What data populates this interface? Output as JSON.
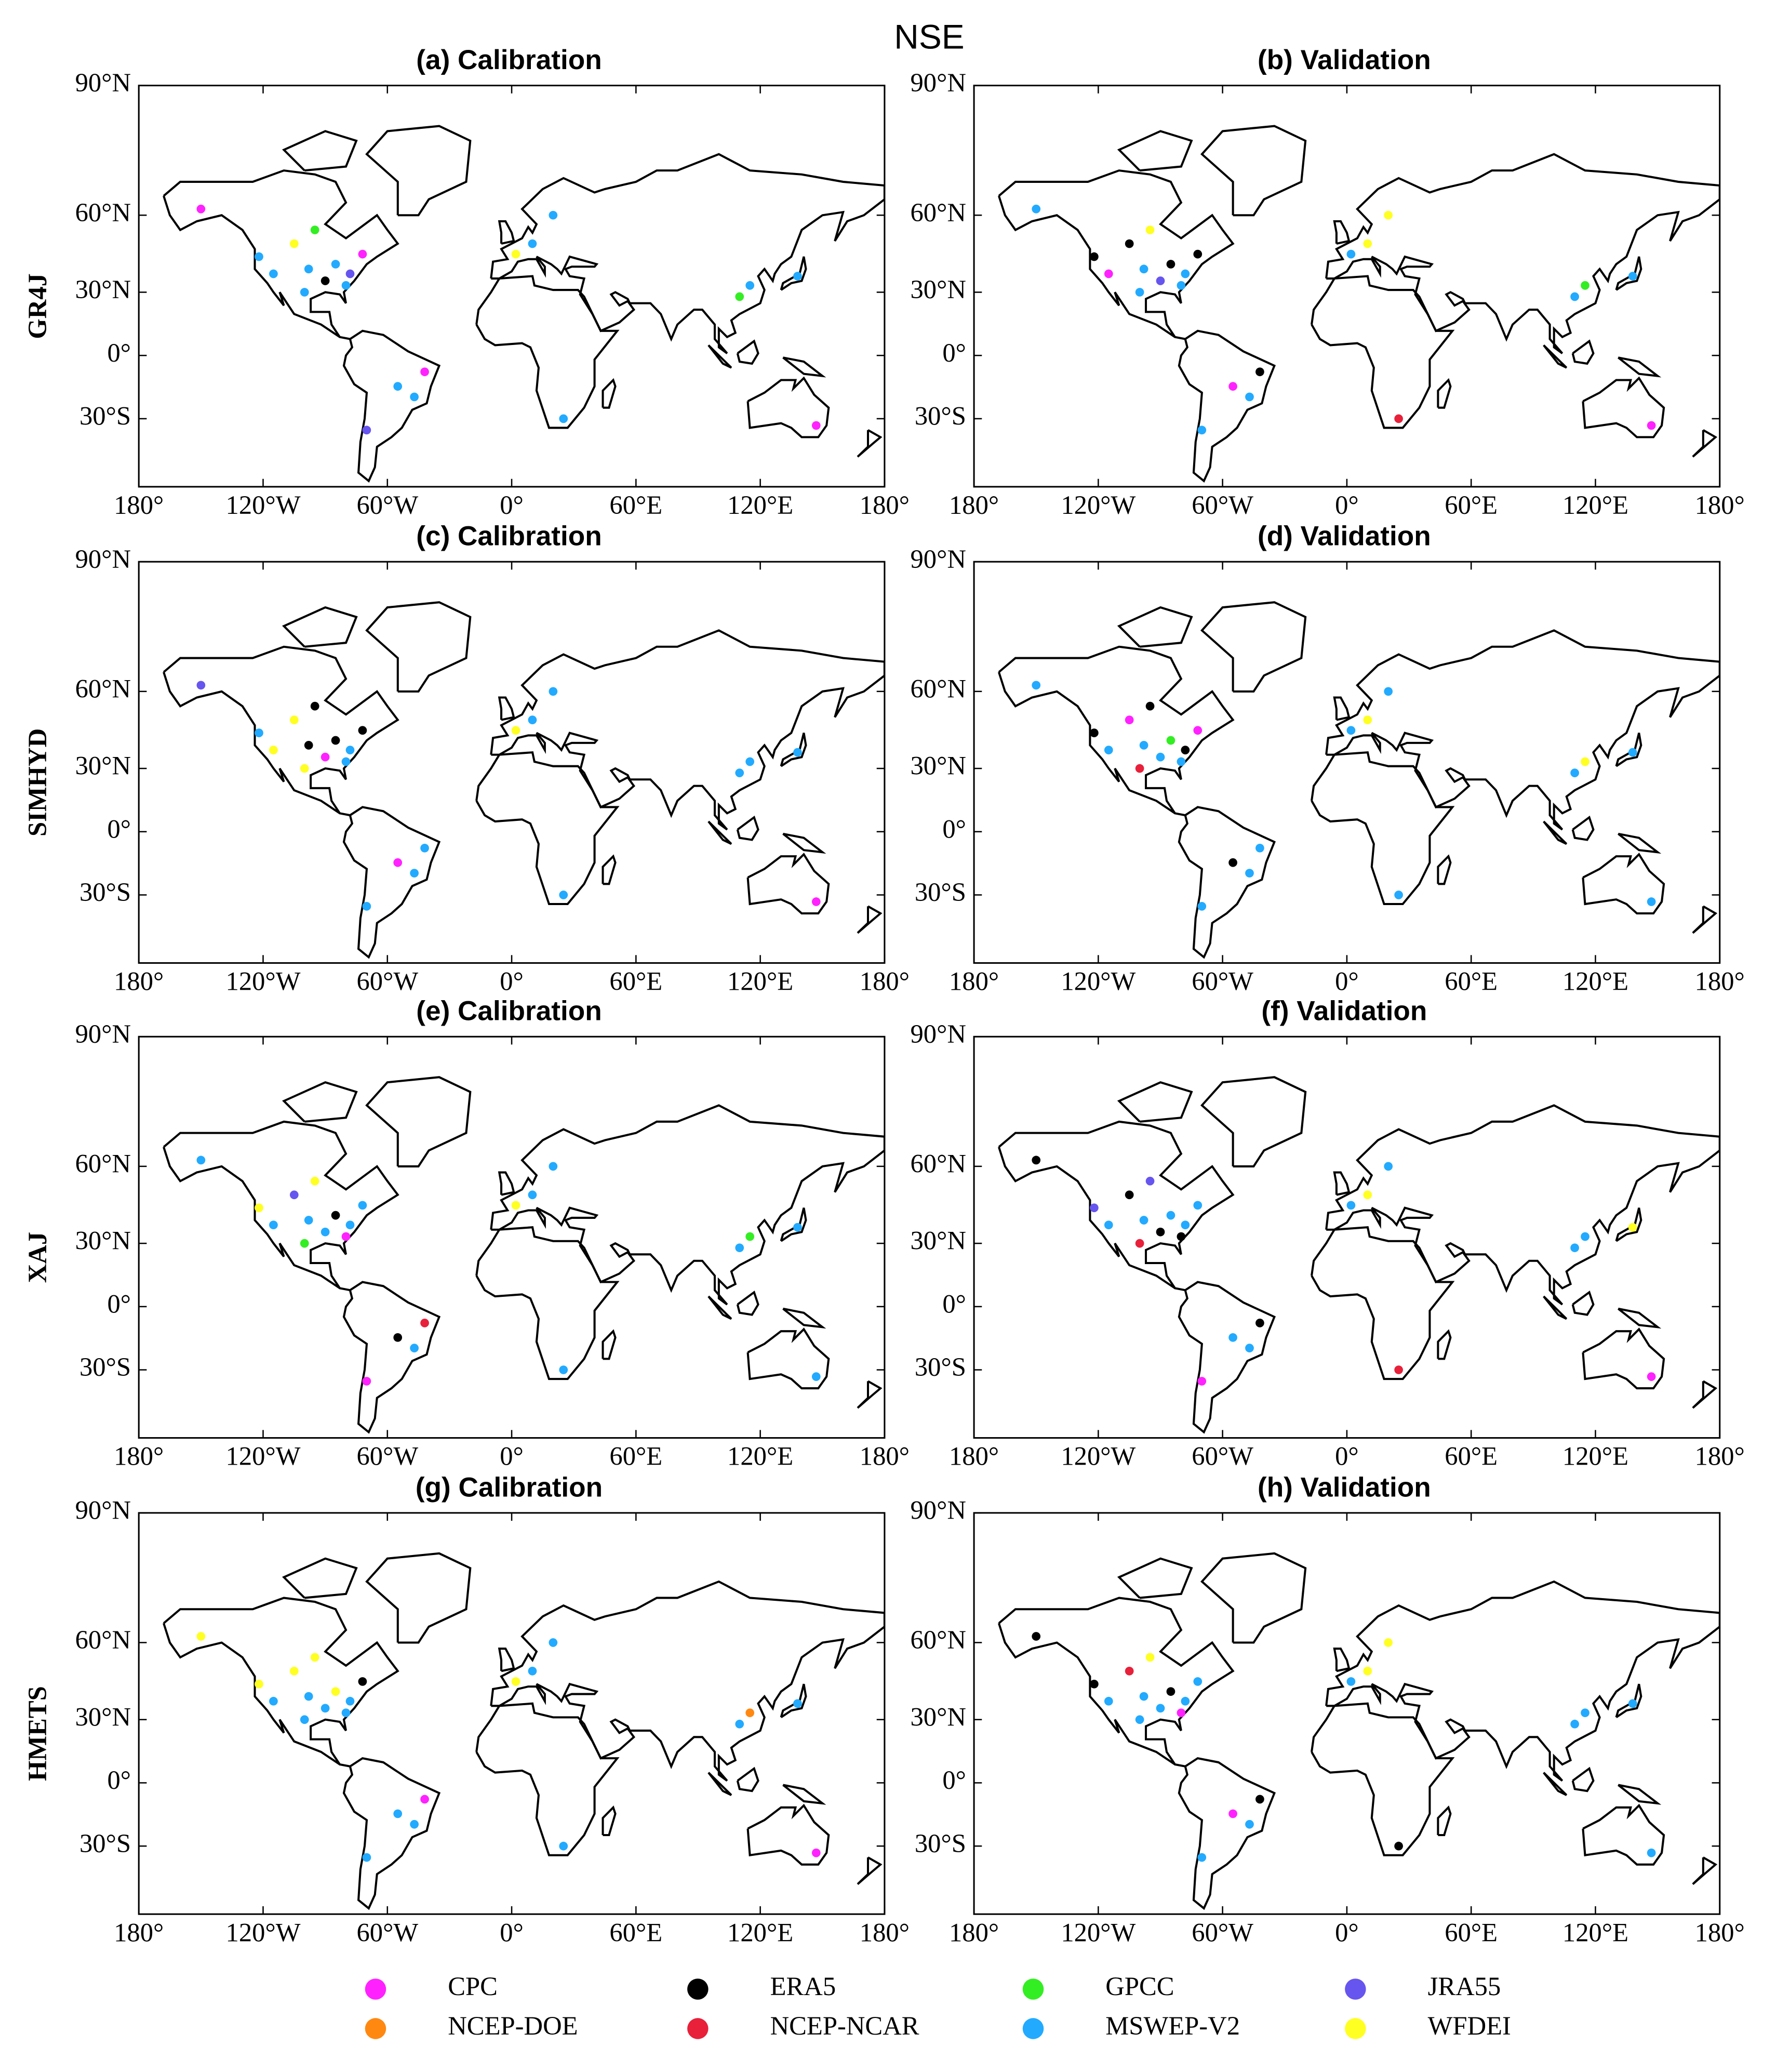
{
  "chart_data": {
    "type": "map",
    "title": "NSE",
    "projection": "miller",
    "xlim": [
      -180,
      180
    ],
    "ylim": [
      -57,
      90
    ],
    "xticks": [
      {
        "value": -180,
        "label": "180°"
      },
      {
        "value": -120,
        "label": "120°W"
      },
      {
        "value": -60,
        "label": "60°W"
      },
      {
        "value": 0,
        "label": "0°"
      },
      {
        "value": 60,
        "label": "60°E"
      },
      {
        "value": 120,
        "label": "120°E"
      },
      {
        "value": 180,
        "label": "180°"
      }
    ],
    "yticks": [
      {
        "value": 90,
        "label": "90°N"
      },
      {
        "value": 60,
        "label": "60°N"
      },
      {
        "value": 30,
        "label": "30°N"
      },
      {
        "value": 0,
        "label": "0°"
      },
      {
        "value": -30,
        "label": "30°S"
      }
    ],
    "rows": [
      "GR4J",
      "SIMHYD",
      "XAJ",
      "HMETS"
    ],
    "series": [
      {
        "name": "CPC",
        "color": "#ff22ff"
      },
      {
        "name": "ERA5",
        "color": "#000000"
      },
      {
        "name": "GPCC",
        "color": "#33ee22"
      },
      {
        "name": "JRA55",
        "color": "#6655ee"
      },
      {
        "name": "NCEP-DOE",
        "color": "#ff8811"
      },
      {
        "name": "NCEP-NCAR",
        "color": "#e8203a"
      },
      {
        "name": "MSWEP-V2",
        "color": "#22aaff"
      },
      {
        "name": "WFDEI",
        "color": "#ffff22"
      }
    ],
    "panels": [
      {
        "title": "(a) Calibration",
        "points": [
          [
            -150,
            62,
            0
          ],
          [
            -122,
            45,
            6
          ],
          [
            -115,
            38,
            6
          ],
          [
            -105,
            50,
            7
          ],
          [
            -98,
            40,
            6
          ],
          [
            -90,
            35,
            1
          ],
          [
            -85,
            42,
            6
          ],
          [
            -78,
            38,
            3
          ],
          [
            -80,
            33,
            6
          ],
          [
            -72,
            46,
            0
          ],
          [
            -95,
            55,
            2
          ],
          [
            -100,
            30,
            6
          ],
          [
            -47,
            -20,
            6
          ],
          [
            -42,
            -8,
            0
          ],
          [
            -55,
            -15,
            6
          ],
          [
            -70,
            -35,
            3
          ],
          [
            10,
            50,
            6
          ],
          [
            2,
            46,
            7
          ],
          [
            20,
            60,
            6
          ],
          [
            110,
            28,
            2
          ],
          [
            115,
            33,
            6
          ],
          [
            138,
            37,
            6
          ],
          [
            25,
            -30,
            6
          ],
          [
            147,
            -33,
            0
          ]
        ]
      },
      {
        "title": "(b) Validation",
        "points": [
          [
            -150,
            62,
            6
          ],
          [
            -122,
            45,
            1
          ],
          [
            -115,
            38,
            0
          ],
          [
            -105,
            50,
            1
          ],
          [
            -98,
            40,
            6
          ],
          [
            -90,
            35,
            3
          ],
          [
            -85,
            42,
            1
          ],
          [
            -78,
            38,
            6
          ],
          [
            -80,
            33,
            6
          ],
          [
            -72,
            46,
            1
          ],
          [
            -95,
            55,
            7
          ],
          [
            -100,
            30,
            6
          ],
          [
            -47,
            -20,
            6
          ],
          [
            -42,
            -8,
            1
          ],
          [
            -55,
            -15,
            0
          ],
          [
            -70,
            -35,
            6
          ],
          [
            10,
            50,
            7
          ],
          [
            2,
            46,
            6
          ],
          [
            20,
            60,
            7
          ],
          [
            110,
            28,
            6
          ],
          [
            115,
            33,
            2
          ],
          [
            138,
            37,
            6
          ],
          [
            25,
            -30,
            5
          ],
          [
            147,
            -33,
            0
          ]
        ]
      },
      {
        "title": "(c) Calibration",
        "points": [
          [
            -150,
            62,
            3
          ],
          [
            -122,
            45,
            6
          ],
          [
            -115,
            38,
            7
          ],
          [
            -105,
            50,
            7
          ],
          [
            -98,
            40,
            1
          ],
          [
            -90,
            35,
            0
          ],
          [
            -85,
            42,
            1
          ],
          [
            -78,
            38,
            6
          ],
          [
            -80,
            33,
            6
          ],
          [
            -72,
            46,
            1
          ],
          [
            -95,
            55,
            1
          ],
          [
            -100,
            30,
            7
          ],
          [
            -47,
            -20,
            6
          ],
          [
            -42,
            -8,
            6
          ],
          [
            -55,
            -15,
            0
          ],
          [
            -70,
            -35,
            6
          ],
          [
            10,
            50,
            6
          ],
          [
            2,
            46,
            7
          ],
          [
            20,
            60,
            6
          ],
          [
            110,
            28,
            6
          ],
          [
            115,
            33,
            6
          ],
          [
            138,
            37,
            6
          ],
          [
            25,
            -30,
            6
          ],
          [
            147,
            -33,
            0
          ]
        ]
      },
      {
        "title": "(d) Validation",
        "points": [
          [
            -150,
            62,
            6
          ],
          [
            -122,
            45,
            1
          ],
          [
            -115,
            38,
            6
          ],
          [
            -105,
            50,
            0
          ],
          [
            -98,
            40,
            6
          ],
          [
            -90,
            35,
            6
          ],
          [
            -85,
            42,
            2
          ],
          [
            -78,
            38,
            1
          ],
          [
            -80,
            33,
            6
          ],
          [
            -72,
            46,
            0
          ],
          [
            -95,
            55,
            1
          ],
          [
            -100,
            30,
            5
          ],
          [
            -47,
            -20,
            6
          ],
          [
            -42,
            -8,
            6
          ],
          [
            -55,
            -15,
            1
          ],
          [
            -70,
            -35,
            6
          ],
          [
            10,
            50,
            7
          ],
          [
            2,
            46,
            6
          ],
          [
            20,
            60,
            6
          ],
          [
            110,
            28,
            6
          ],
          [
            115,
            33,
            7
          ],
          [
            138,
            37,
            6
          ],
          [
            25,
            -30,
            6
          ],
          [
            147,
            -33,
            6
          ]
        ]
      },
      {
        "title": "(e) Calibration",
        "points": [
          [
            -150,
            62,
            6
          ],
          [
            -122,
            45,
            7
          ],
          [
            -115,
            38,
            6
          ],
          [
            -105,
            50,
            3
          ],
          [
            -98,
            40,
            6
          ],
          [
            -90,
            35,
            6
          ],
          [
            -85,
            42,
            1
          ],
          [
            -78,
            38,
            6
          ],
          [
            -80,
            33,
            0
          ],
          [
            -72,
            46,
            6
          ],
          [
            -95,
            55,
            7
          ],
          [
            -100,
            30,
            2
          ],
          [
            -47,
            -20,
            6
          ],
          [
            -42,
            -8,
            5
          ],
          [
            -55,
            -15,
            1
          ],
          [
            -70,
            -35,
            0
          ],
          [
            10,
            50,
            6
          ],
          [
            2,
            46,
            7
          ],
          [
            20,
            60,
            6
          ],
          [
            110,
            28,
            6
          ],
          [
            115,
            33,
            2
          ],
          [
            138,
            37,
            6
          ],
          [
            25,
            -30,
            6
          ],
          [
            147,
            -33,
            6
          ]
        ]
      },
      {
        "title": "(f) Validation",
        "points": [
          [
            -150,
            62,
            1
          ],
          [
            -122,
            45,
            3
          ],
          [
            -115,
            38,
            6
          ],
          [
            -105,
            50,
            1
          ],
          [
            -98,
            40,
            6
          ],
          [
            -90,
            35,
            1
          ],
          [
            -85,
            42,
            6
          ],
          [
            -78,
            38,
            6
          ],
          [
            -80,
            33,
            1
          ],
          [
            -72,
            46,
            6
          ],
          [
            -95,
            55,
            3
          ],
          [
            -100,
            30,
            5
          ],
          [
            -47,
            -20,
            6
          ],
          [
            -42,
            -8,
            1
          ],
          [
            -55,
            -15,
            6
          ],
          [
            -70,
            -35,
            0
          ],
          [
            10,
            50,
            7
          ],
          [
            2,
            46,
            6
          ],
          [
            20,
            60,
            6
          ],
          [
            110,
            28,
            6
          ],
          [
            115,
            33,
            6
          ],
          [
            138,
            37,
            7
          ],
          [
            25,
            -30,
            5
          ],
          [
            147,
            -33,
            0
          ]
        ]
      },
      {
        "title": "(g) Calibration",
        "points": [
          [
            -150,
            62,
            7
          ],
          [
            -122,
            45,
            7
          ],
          [
            -115,
            38,
            6
          ],
          [
            -105,
            50,
            7
          ],
          [
            -98,
            40,
            6
          ],
          [
            -90,
            35,
            6
          ],
          [
            -85,
            42,
            7
          ],
          [
            -78,
            38,
            6
          ],
          [
            -80,
            33,
            6
          ],
          [
            -72,
            46,
            1
          ],
          [
            -95,
            55,
            7
          ],
          [
            -100,
            30,
            6
          ],
          [
            -47,
            -20,
            6
          ],
          [
            -42,
            -8,
            0
          ],
          [
            -55,
            -15,
            6
          ],
          [
            -70,
            -35,
            6
          ],
          [
            10,
            50,
            6
          ],
          [
            2,
            46,
            7
          ],
          [
            20,
            60,
            6
          ],
          [
            110,
            28,
            6
          ],
          [
            115,
            33,
            4
          ],
          [
            138,
            37,
            6
          ],
          [
            25,
            -30,
            6
          ],
          [
            147,
            -33,
            0
          ]
        ]
      },
      {
        "title": "(h) Validation",
        "points": [
          [
            -150,
            62,
            1
          ],
          [
            -122,
            45,
            1
          ],
          [
            -115,
            38,
            6
          ],
          [
            -105,
            50,
            5
          ],
          [
            -98,
            40,
            6
          ],
          [
            -90,
            35,
            6
          ],
          [
            -85,
            42,
            1
          ],
          [
            -78,
            38,
            6
          ],
          [
            -80,
            33,
            0
          ],
          [
            -72,
            46,
            6
          ],
          [
            -95,
            55,
            7
          ],
          [
            -100,
            30,
            6
          ],
          [
            -47,
            -20,
            6
          ],
          [
            -42,
            -8,
            1
          ],
          [
            -55,
            -15,
            0
          ],
          [
            -70,
            -35,
            6
          ],
          [
            10,
            50,
            7
          ],
          [
            2,
            46,
            6
          ],
          [
            20,
            60,
            7
          ],
          [
            110,
            28,
            6
          ],
          [
            115,
            33,
            6
          ],
          [
            138,
            37,
            6
          ],
          [
            25,
            -30,
            1
          ],
          [
            147,
            -33,
            6
          ]
        ]
      }
    ]
  }
}
